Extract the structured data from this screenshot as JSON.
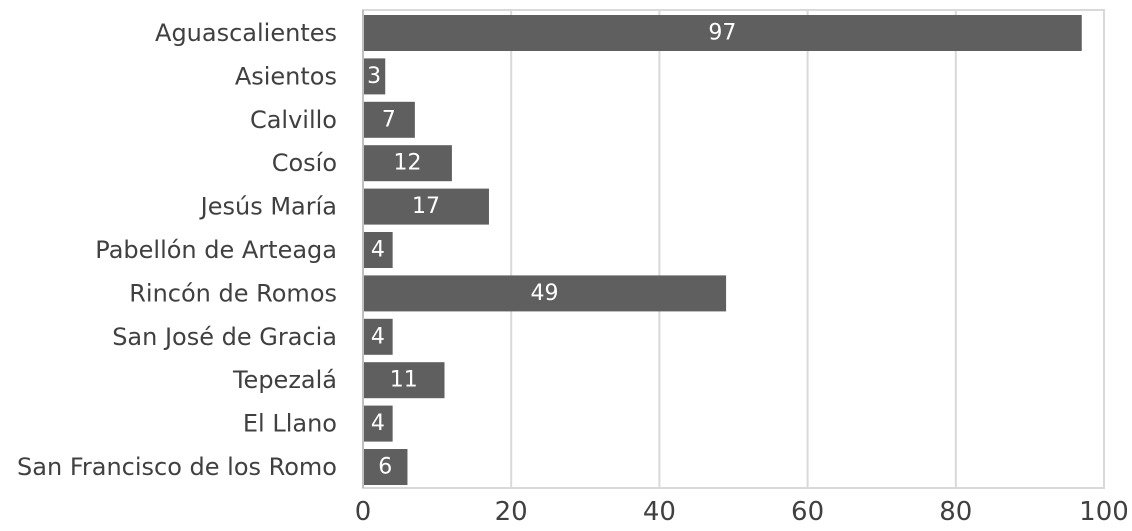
{
  "chart_data": {
    "type": "bar",
    "orientation": "horizontal",
    "title": "",
    "xlabel": "",
    "ylabel": "",
    "categories": [
      "Aguascalientes",
      "Asientos",
      "Calvillo",
      "Cosío",
      "Jesús María",
      "Pabellón de Arteaga",
      "Rincón de Romos",
      "San José de Gracia",
      "Tepezalá",
      "El Llano",
      "San Francisco de los Romo"
    ],
    "values": [
      97,
      3,
      7,
      12,
      17,
      4,
      49,
      4,
      11,
      4,
      6
    ],
    "xlim": [
      0,
      100
    ],
    "xticks": [
      0,
      20,
      40,
      60,
      80,
      100
    ],
    "grid": true,
    "legend": "none",
    "data_labels": true,
    "colors": {
      "bar": "#5f5f5f",
      "grid": "#d9d9d9",
      "plot_border": "#d9d9d9",
      "axis": "#bfbfbf",
      "text": "#404040",
      "data_label": "#ffffff"
    }
  }
}
